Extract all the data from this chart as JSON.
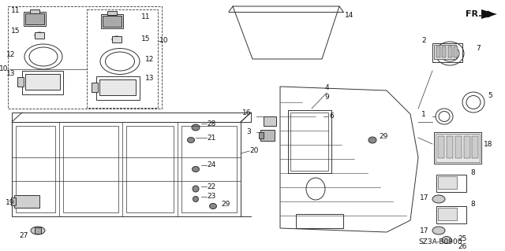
{
  "bg_color": "#ffffff",
  "diagram_code": "SZ3A-B0900",
  "line_color": "#333333",
  "text_color": "#111111",
  "lw": 0.7,
  "fig_w": 6.4,
  "fig_h": 3.19,
  "dpi": 100
}
